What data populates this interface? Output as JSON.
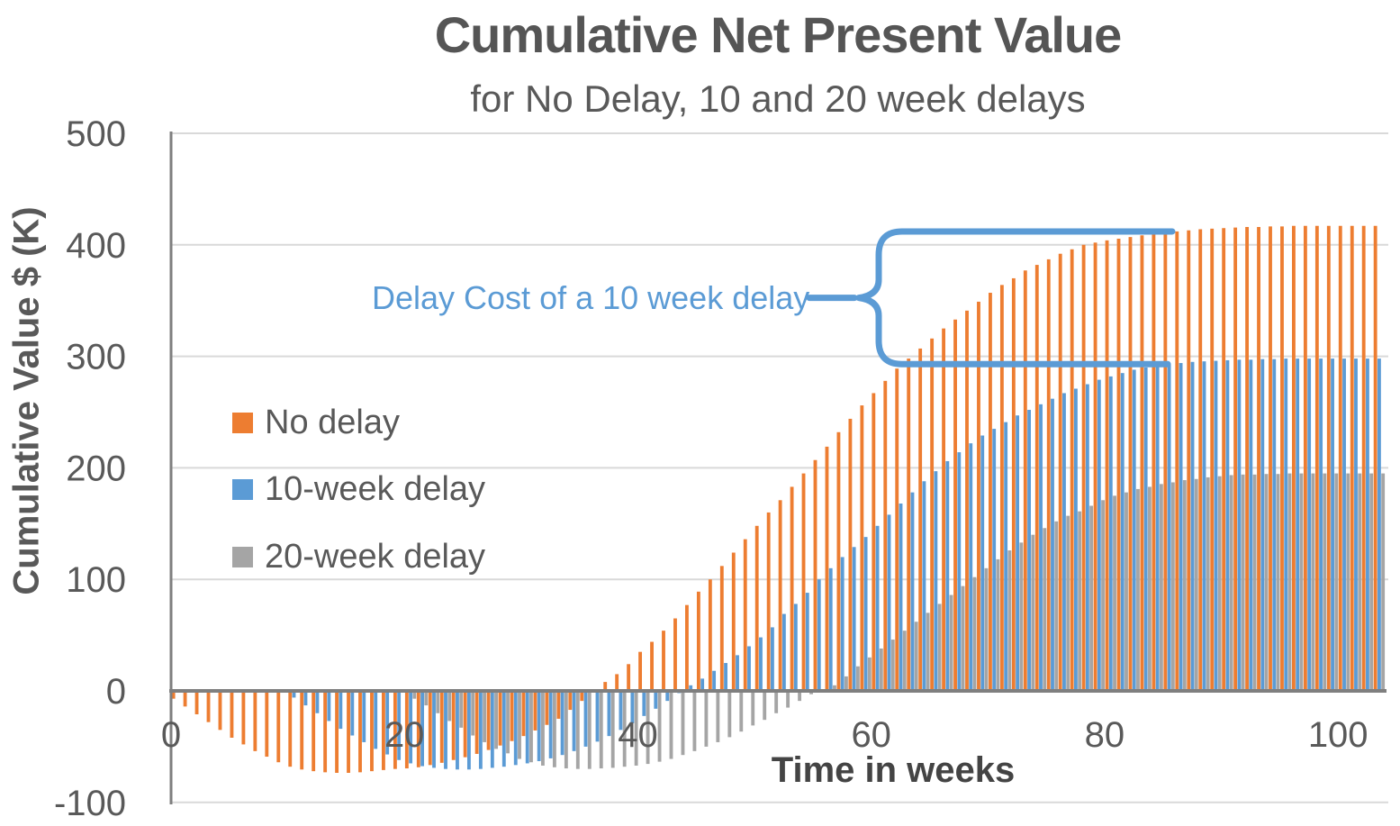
{
  "title": "Cumulative Net Present Value",
  "subtitle": "for No Delay, 10 and 20 week delays",
  "y_axis_title": "Cumulative Value $ (K)",
  "x_axis_title": "Time in weeks",
  "annotation": {
    "label": "Delay Cost of a 10 week delay",
    "color": "#5B9BD5"
  },
  "legend": [
    {
      "label": "No delay",
      "color": "#ED7D31"
    },
    {
      "label": "10-week delay",
      "color": "#5B9BD5"
    },
    {
      "label": "20-week delay",
      "color": "#A5A5A5"
    }
  ],
  "colors": {
    "gridline": "#D9D9D9",
    "axis_line": "#7F7F7F",
    "tick_text": "#595959"
  },
  "chart_data": {
    "type": "bar",
    "title": "Cumulative Net Present Value",
    "subtitle": "for No Delay, 10 and 20 week delays",
    "xlabel": "Time in weeks",
    "ylabel": "Cumulative Value $ (K)",
    "x_unit": "weeks",
    "x_start_week": 1,
    "weeks_total": 104,
    "x_ticks": [
      0,
      20,
      40,
      60,
      80,
      100
    ],
    "y_ticks": [
      500,
      400,
      300,
      200,
      100,
      0,
      -100
    ],
    "ylim": [
      -100,
      500
    ],
    "xlim": [
      0,
      104
    ],
    "grid": true,
    "legend_position": "inside-left",
    "series": [
      {
        "name": "No delay",
        "color": "#ED7D31",
        "values": [
          -7,
          -14,
          -21,
          -28,
          -35,
          -42,
          -48,
          -54,
          -59,
          -64,
          -68,
          -70.5,
          -72,
          -73,
          -73.5,
          -73.5,
          -73,
          -72,
          -71,
          -70,
          -69.5,
          -68.5,
          -66.5,
          -64.5,
          -62,
          -59.5,
          -56.5,
          -53,
          -49,
          -45,
          -40.5,
          -35.5,
          -30.5,
          -25,
          -17,
          -9,
          -1,
          8,
          15,
          24,
          35,
          44,
          54,
          65,
          77,
          89,
          100,
          112,
          124,
          136,
          148,
          160,
          171,
          183,
          195,
          207,
          219,
          232,
          244,
          256,
          267,
          278,
          289,
          298,
          307,
          316,
          325,
          333,
          341,
          349,
          357,
          364,
          370,
          377,
          382,
          387,
          392,
          396,
          400,
          402,
          404,
          405.5,
          407,
          408.5,
          410,
          411,
          412,
          413,
          414,
          414.5,
          415,
          415.5,
          416,
          416,
          416.5,
          416.5,
          417,
          417,
          417,
          417,
          417,
          417,
          417,
          417
        ]
      },
      {
        "name": "10-week delay",
        "color": "#5B9BD5",
        "values": [
          null,
          null,
          null,
          null,
          null,
          null,
          null,
          null,
          null,
          null,
          -6,
          -13,
          -20,
          -27,
          -34,
          -40,
          -46,
          -52,
          -57,
          -62,
          -65,
          -67.5,
          -69,
          -70,
          -70.5,
          -70.5,
          -70,
          -69,
          -68,
          -66.5,
          -65,
          -63,
          -60.5,
          -57.5,
          -54,
          -50,
          -45.5,
          -40.5,
          -35,
          -29,
          -22.5,
          -16,
          -9,
          -2,
          5,
          11,
          18,
          25,
          32,
          40,
          48,
          57,
          69,
          78,
          88,
          100,
          110,
          120,
          129,
          138,
          148,
          158,
          168,
          178,
          188,
          197,
          206,
          214,
          222,
          229,
          235,
          241,
          247,
          252,
          257,
          262,
          267,
          271,
          275,
          279,
          282,
          285,
          288,
          290,
          291.5,
          293,
          294,
          295,
          295.5,
          296,
          296.5,
          297,
          297,
          297.5,
          297.5,
          298,
          298,
          298,
          298,
          298,
          298,
          298,
          298,
          298
        ]
      },
      {
        "name": "20-week delay",
        "color": "#A5A5A5",
        "values": [
          null,
          null,
          null,
          null,
          null,
          null,
          null,
          null,
          null,
          null,
          null,
          null,
          null,
          null,
          null,
          null,
          null,
          null,
          null,
          null,
          -7,
          -13,
          -20,
          -27,
          -33,
          -40,
          -46,
          -52,
          -56,
          -61,
          -64,
          -67,
          -68.5,
          -69.5,
          -70,
          -70,
          -69.5,
          -69,
          -68,
          -67,
          -65.5,
          -63.5,
          -61,
          -57.5,
          -54,
          -50,
          -46,
          -41.5,
          -36.5,
          -31,
          -26,
          -20,
          -15,
          -9,
          -3,
          1,
          5,
          13,
          22,
          30,
          38,
          46,
          54,
          62,
          70,
          78,
          86,
          94,
          102,
          110,
          118,
          126,
          133,
          140,
          146,
          152,
          157,
          161,
          166,
          171,
          175,
          178,
          181,
          183,
          185.5,
          187,
          189,
          190,
          191.5,
          192.5,
          193.5,
          194,
          194,
          194.5,
          194.5,
          195,
          195,
          195,
          195,
          195,
          195,
          195,
          195,
          195
        ]
      }
    ],
    "annotation_brace": {
      "label": "Delay Cost of a 10 week delay",
      "upper_value": 412,
      "lower_value": 293
    }
  }
}
